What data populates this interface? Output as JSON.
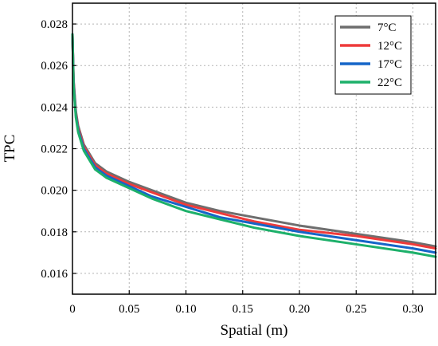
{
  "chart_data": {
    "type": "line",
    "title": "",
    "xlabel": "Spatial (m)",
    "ylabel": "TPC",
    "xlim": [
      0,
      0.32
    ],
    "ylim": [
      0.015,
      0.029
    ],
    "xticks": [
      0,
      0.05,
      0.1,
      0.15,
      0.2,
      0.25,
      0.3
    ],
    "xtick_labels": [
      "0",
      "0.05",
      "0.10",
      "0.15",
      "0.20",
      "0.25",
      "0.30"
    ],
    "yticks": [
      0.016,
      0.018,
      0.02,
      0.022,
      0.024,
      0.026,
      0.028
    ],
    "ytick_labels": [
      "0.016",
      "0.018",
      "0.020",
      "0.022",
      "0.024",
      "0.026",
      "0.028"
    ],
    "grid": true,
    "legend_position": "top-right",
    "x": [
      0,
      0.001,
      0.003,
      0.005,
      0.01,
      0.02,
      0.03,
      0.05,
      0.07,
      0.1,
      0.13,
      0.16,
      0.2,
      0.25,
      0.3,
      0.32
    ],
    "series": [
      {
        "name": "7°C",
        "color": "#6e6e6e",
        "values": [
          0.0275,
          0.0253,
          0.0238,
          0.0231,
          0.0222,
          0.0213,
          0.0209,
          0.0204,
          0.02,
          0.0194,
          0.019,
          0.0187,
          0.0183,
          0.0179,
          0.0175,
          0.0173
        ]
      },
      {
        "name": "12°C",
        "color": "#ee3b3b",
        "values": [
          0.0275,
          0.0252,
          0.0237,
          0.023,
          0.0221,
          0.0212,
          0.0208,
          0.0203,
          0.0199,
          0.0193,
          0.0189,
          0.0185,
          0.0181,
          0.0178,
          0.0174,
          0.0172
        ]
      },
      {
        "name": "17°C",
        "color": "#1565c8",
        "values": [
          0.0275,
          0.0251,
          0.0236,
          0.0229,
          0.022,
          0.0211,
          0.0207,
          0.0202,
          0.0197,
          0.0192,
          0.0187,
          0.0184,
          0.018,
          0.0176,
          0.0172,
          0.017
        ]
      },
      {
        "name": "22°C",
        "color": "#1db06a",
        "values": [
          0.0275,
          0.025,
          0.0235,
          0.0228,
          0.0219,
          0.021,
          0.0206,
          0.0201,
          0.0196,
          0.019,
          0.0186,
          0.0182,
          0.0178,
          0.0174,
          0.017,
          0.0168
        ]
      }
    ]
  }
}
